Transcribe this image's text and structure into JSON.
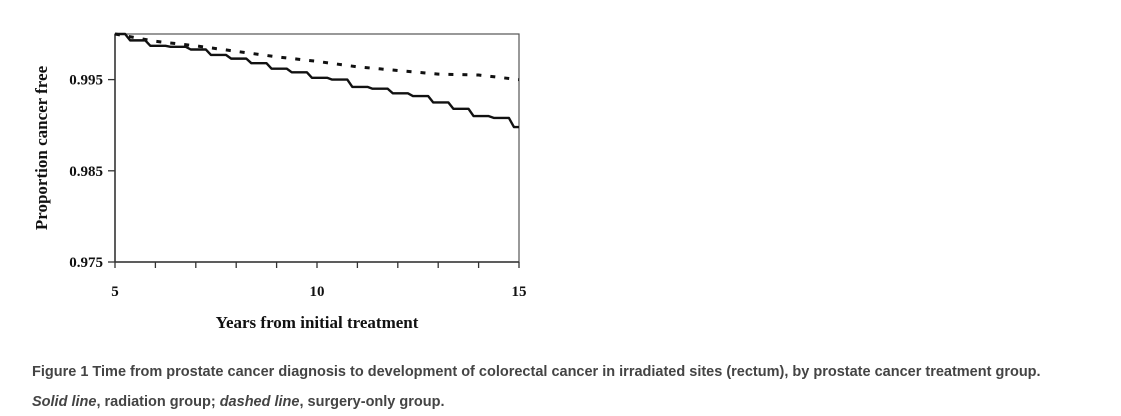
{
  "chart_data": {
    "type": "line",
    "title": "",
    "xlabel": "Years from initial treatment",
    "ylabel": "Proportion cancer free",
    "xlim": [
      5,
      15
    ],
    "ylim": [
      0.975,
      1.0
    ],
    "x_ticks": [
      5,
      10,
      15
    ],
    "x_minor_tick_step": 1,
    "y_ticks": [
      0.975,
      0.985,
      0.995
    ],
    "y_tick_labels": [
      "0.975",
      "0.985",
      "0.995"
    ],
    "grid": false,
    "legend": null,
    "series": [
      {
        "name": "Radiation group",
        "style": "solid",
        "x": [
          5,
          5.5,
          6,
          6.5,
          7,
          7.5,
          8,
          8.5,
          9,
          9.5,
          10,
          10.5,
          11,
          11.5,
          12,
          12.5,
          13,
          13.5,
          14,
          14.5,
          15
        ],
        "y": [
          1.0,
          0.9993,
          0.9987,
          0.9986,
          0.9983,
          0.9977,
          0.9973,
          0.9968,
          0.9962,
          0.9958,
          0.9952,
          0.995,
          0.9942,
          0.994,
          0.9935,
          0.9932,
          0.9925,
          0.9918,
          0.991,
          0.9908,
          0.9898
        ]
      },
      {
        "name": "Surgery-only group",
        "style": "dashed",
        "x": [
          5,
          6,
          7,
          8,
          9,
          10,
          11,
          12,
          13,
          14,
          15
        ],
        "y": [
          1.0,
          0.9992,
          0.9987,
          0.9981,
          0.9975,
          0.997,
          0.9964,
          0.996,
          0.9956,
          0.9955,
          0.995
        ]
      }
    ]
  },
  "caption": {
    "label": "Figure 1",
    "text": " Time from prostate cancer diagnosis to development of colorectal cancer in irradiated sites (rectum), by prostate cancer treatment group.",
    "solid_term": "Solid line",
    "solid_desc": ", radiation group; ",
    "dashed_term": "dashed line",
    "dashed_desc": ", surgery-only group."
  }
}
